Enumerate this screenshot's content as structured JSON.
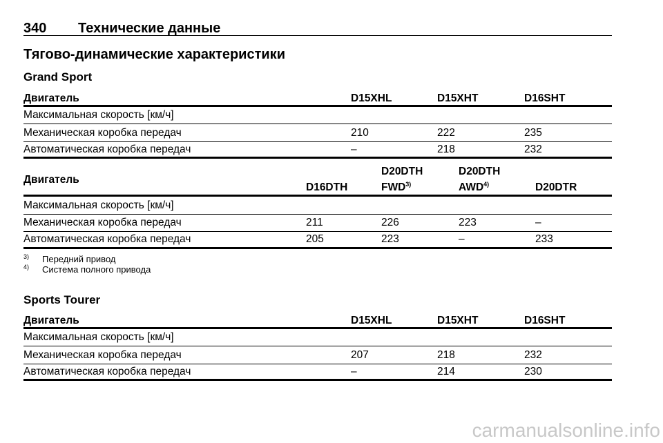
{
  "header": {
    "page_number": "340",
    "title": "Технические данные"
  },
  "section_title": "Тягово-динамические характеристики",
  "grand_sport": {
    "heading": "Grand Sport",
    "table1": {
      "engine_label": "Двигатель",
      "columns": [
        "D15XHL",
        "D15XHT",
        "D16SHT"
      ],
      "rows": [
        {
          "label": "Максимальная скорость [км/ч]",
          "values": [
            "",
            "",
            ""
          ]
        },
        {
          "label": "Механическая коробка передач",
          "values": [
            "210",
            "222",
            "235"
          ]
        },
        {
          "label": "Автоматическая коробка передач",
          "values": [
            "–",
            "218",
            "232"
          ]
        }
      ]
    },
    "table2": {
      "engine_label": "Двигатель",
      "columns": [
        {
          "line1": "",
          "line2": "D16DTH",
          "sup": ""
        },
        {
          "line1": "D20DTH",
          "line2": "FWD",
          "sup": "3)"
        },
        {
          "line1": "D20DTH",
          "line2": "AWD",
          "sup": "4)"
        },
        {
          "line1": "",
          "line2": "D20DTR",
          "sup": ""
        }
      ],
      "rows": [
        {
          "label": "Максимальная скорость [км/ч]",
          "values": [
            "",
            "",
            "",
            ""
          ]
        },
        {
          "label": "Механическая коробка передач",
          "values": [
            "211",
            "226",
            "223",
            "–"
          ]
        },
        {
          "label": "Автоматическая коробка передач",
          "values": [
            "205",
            "223",
            "–",
            "233"
          ]
        }
      ]
    },
    "footnotes": [
      {
        "mark": "3)",
        "text": "Передний привод"
      },
      {
        "mark": "4)",
        "text": "Система полного привода"
      }
    ]
  },
  "sports_tourer": {
    "heading": "Sports Tourer",
    "table": {
      "engine_label": "Двигатель",
      "columns": [
        "D15XHL",
        "D15XHT",
        "D16SHT"
      ],
      "rows": [
        {
          "label": "Максимальная скорость [км/ч]",
          "values": [
            "",
            "",
            ""
          ]
        },
        {
          "label": "Механическая коробка передач",
          "values": [
            "207",
            "218",
            "232"
          ]
        },
        {
          "label": "Автоматическая коробка передач",
          "values": [
            "–",
            "214",
            "230"
          ]
        }
      ]
    }
  },
  "watermark": "carmanualsonline.info"
}
